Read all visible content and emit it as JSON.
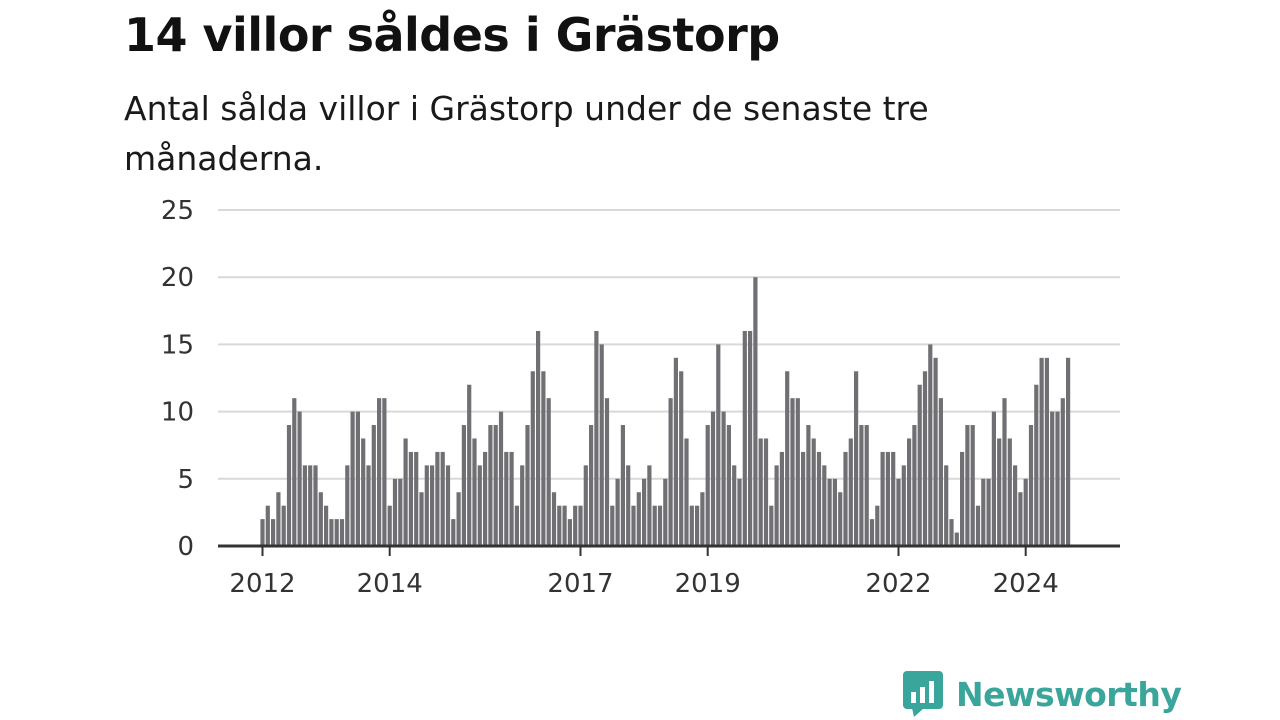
{
  "title": "14 villor såldes i Grästorp",
  "subtitle": "Antal sålda villor i Grästorp under de senaste tre månaderna.",
  "brand": {
    "name": "Newsworthy",
    "color": "#3aa59b"
  },
  "colors": {
    "bar": "#707074",
    "highlight": "#16948a",
    "grid": "#d9d9d9",
    "axis": "#333333"
  },
  "chart_data": {
    "type": "bar",
    "title": "14 villor såldes i Grästorp",
    "xlabel": "",
    "ylabel": "",
    "ylim": [
      0,
      25
    ],
    "yticks": [
      0,
      5,
      10,
      15,
      20,
      25
    ],
    "grid": true,
    "x_start": "2012-01",
    "x_ticks": [
      {
        "label": "2012",
        "index": 0
      },
      {
        "label": "2014",
        "index": 24
      },
      {
        "label": "2017",
        "index": 60
      },
      {
        "label": "2019",
        "index": 84
      },
      {
        "label": "2022",
        "index": 120
      },
      {
        "label": "2024",
        "index": 144
      }
    ],
    "values": [
      2,
      3,
      2,
      4,
      3,
      9,
      11,
      10,
      6,
      6,
      6,
      4,
      3,
      2,
      2,
      2,
      6,
      10,
      10,
      8,
      6,
      9,
      11,
      11,
      3,
      5,
      5,
      8,
      7,
      7,
      4,
      6,
      6,
      7,
      7,
      6,
      2,
      4,
      9,
      12,
      8,
      6,
      7,
      9,
      9,
      10,
      7,
      7,
      3,
      6,
      9,
      13,
      16,
      13,
      11,
      4,
      3,
      3,
      2,
      3,
      3,
      6,
      9,
      16,
      15,
      11,
      3,
      5,
      9,
      6,
      3,
      4,
      5,
      6,
      3,
      3,
      5,
      11,
      14,
      13,
      8,
      3,
      3,
      4,
      9,
      10,
      15,
      10,
      9,
      6,
      5,
      16,
      16,
      20,
      8,
      8,
      3,
      6,
      7,
      13,
      11,
      11,
      7,
      9,
      8,
      7,
      6,
      5,
      5,
      4,
      7,
      8,
      13,
      9,
      9,
      2,
      3,
      7,
      7,
      7,
      5,
      6,
      8,
      9,
      12,
      13,
      15,
      14,
      11,
      6,
      2,
      1,
      7,
      9,
      9,
      3,
      5,
      5,
      10,
      8,
      11,
      8,
      6,
      4,
      5,
      9,
      12,
      14,
      14,
      10,
      10,
      11,
      14
    ],
    "highlight_index": 154,
    "annotation": "14"
  }
}
